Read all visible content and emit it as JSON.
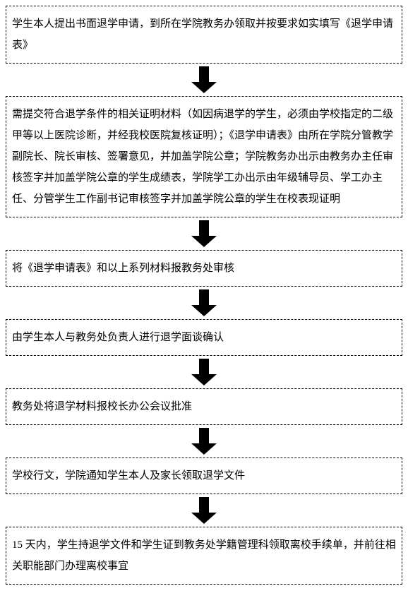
{
  "flow": {
    "type": "flowchart",
    "direction": "vertical",
    "background_color": "#ffffff",
    "box_border_style": "dashed",
    "box_border_color": "#000000",
    "box_border_width": 1,
    "text_color": "#000000",
    "font_family": "SimSun",
    "font_size": 15,
    "line_height": 2.0,
    "arrow_color": "#000000",
    "arrow_shaft_width": 14,
    "arrow_head_width": 36,
    "arrow_head_height": 16,
    "arrows": [
      {
        "shaft_height": 22
      },
      {
        "shaft_height": 22
      },
      {
        "shaft_height": 22
      },
      {
        "shaft_height": 22
      },
      {
        "shaft_height": 22
      },
      {
        "shaft_height": 22
      }
    ],
    "steps": [
      {
        "text": "学生本人提出书面退学申请，到所在学院教务办领取并按要求如实填写《退学申请表》"
      },
      {
        "text": "需提交符合退学条件的相关证明材料（如因病退学的学生，必须由学校指定的二级甲等以上医院诊断，并经我校医院复核证明）；《退学申请表》由所在学院分管教学副院长、院长审核、签署意见，并加盖学院公章；学院教务办出示由教务办主任审核签字并加盖学院公章的学生成绩表，学院学工办出示由年级辅导员、学工办主任、分管学生工作副书记审核签字并加盖学院公章的学生在校表现证明"
      },
      {
        "text": "将《退学申请表》和以上系列材料报教务处审核"
      },
      {
        "text": "由学生本人与教务处负责人进行退学面谈确认"
      },
      {
        "text": "教务处将退学材料报校长办公会议批准"
      },
      {
        "text": "学校行文，学院通知学生本人及家长领取退学文件"
      },
      {
        "text": "15 天内，学生持退学文件和学生证到教务处学籍管理科领取离校手续单，并前往相关职能部门办理离校事宜"
      }
    ]
  }
}
